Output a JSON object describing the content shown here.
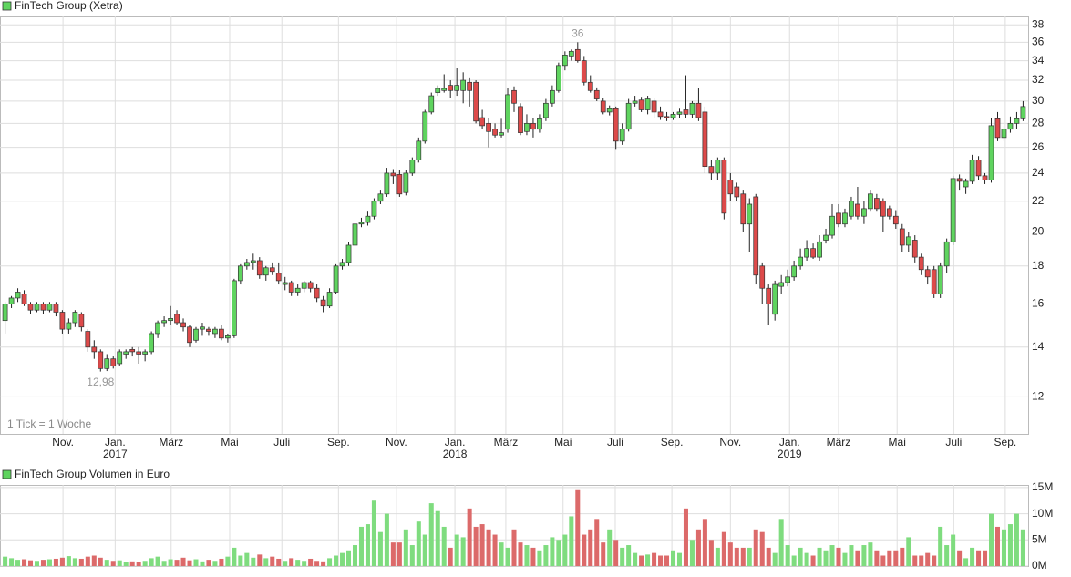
{
  "chart_data": {
    "type": "candlestick",
    "title": "FinTech Group (Xetra)",
    "note": "1 Tick = 1 Woche",
    "volume_title": "FinTech Group Volumen in Euro",
    "log_scale": true,
    "grid": true,
    "up_color": "#5fd45f",
    "down_color": "#dd4a4a",
    "volume_up_color": "#7fdc7f",
    "volume_down_color": "#dc6a6a",
    "ylim": [
      10.7,
      39
    ],
    "yticks": [
      12,
      14,
      16,
      18,
      20,
      22,
      24,
      26,
      28,
      30,
      32,
      34,
      36,
      38
    ],
    "xlim": [
      -0.8,
      160.8
    ],
    "xticks": [
      {
        "value": 9.1,
        "label": "Nov."
      },
      {
        "value": 17.3,
        "label": "Jan."
      },
      {
        "value": 26.1,
        "label": "März"
      },
      {
        "value": 35.3,
        "label": "Mai"
      },
      {
        "value": 43.5,
        "label": "Juli"
      },
      {
        "value": 52.4,
        "label": "Sep."
      },
      {
        "value": 61.5,
        "label": "Nov."
      },
      {
        "value": 70.7,
        "label": "Jan."
      },
      {
        "value": 78.7,
        "label": "März"
      },
      {
        "value": 87.7,
        "label": "Mai"
      },
      {
        "value": 95.9,
        "label": "Juli"
      },
      {
        "value": 104.8,
        "label": "Sep."
      },
      {
        "value": 114.0,
        "label": "Nov."
      },
      {
        "value": 123.3,
        "label": "Jan."
      },
      {
        "value": 131.0,
        "label": "März"
      },
      {
        "value": 140.2,
        "label": "Mai"
      },
      {
        "value": 149.1,
        "label": "Juli"
      },
      {
        "value": 157.2,
        "label": "Sep."
      }
    ],
    "year_labels": [
      {
        "value": 17.3,
        "label": "2017"
      },
      {
        "value": 70.7,
        "label": "2018"
      },
      {
        "value": 123.3,
        "label": "2019"
      }
    ],
    "annotations": [
      {
        "value": 36,
        "label": "36"
      },
      {
        "value": 12.98,
        "label": "12,98"
      }
    ],
    "candles": [
      [
        15.2,
        16.1,
        14.6,
        16.0
      ],
      [
        16.0,
        16.4,
        15.8,
        16.3
      ],
      [
        16.3,
        16.8,
        16.1,
        16.6
      ],
      [
        16.5,
        16.7,
        15.9,
        16.0
      ],
      [
        16.0,
        16.1,
        15.5,
        15.7
      ],
      [
        15.7,
        16.1,
        15.6,
        16.0
      ],
      [
        16.0,
        16.1,
        15.5,
        15.7
      ],
      [
        15.7,
        16.1,
        15.6,
        16.0
      ],
      [
        16.0,
        16.1,
        15.4,
        15.6
      ],
      [
        15.6,
        15.7,
        14.6,
        14.8
      ],
      [
        14.8,
        15.3,
        14.6,
        15.1
      ],
      [
        15.1,
        15.7,
        14.9,
        15.6
      ],
      [
        15.5,
        15.6,
        14.7,
        14.9
      ],
      [
        14.7,
        14.8,
        13.8,
        14.0
      ],
      [
        14.0,
        14.3,
        13.5,
        13.8
      ],
      [
        13.8,
        13.9,
        12.98,
        13.1
      ],
      [
        13.1,
        13.7,
        13.0,
        13.5
      ],
      [
        13.5,
        13.6,
        13.1,
        13.2
      ],
      [
        13.3,
        13.9,
        13.2,
        13.8
      ],
      [
        13.7,
        13.9,
        13.5,
        13.8
      ],
      [
        13.9,
        14.0,
        13.6,
        13.8
      ],
      [
        13.8,
        14.0,
        13.3,
        13.7
      ],
      [
        13.7,
        13.9,
        13.4,
        13.8
      ],
      [
        13.8,
        14.7,
        13.7,
        14.6
      ],
      [
        14.6,
        15.2,
        14.4,
        15.1
      ],
      [
        15.1,
        15.4,
        14.9,
        15.2
      ],
      [
        15.2,
        15.9,
        15.0,
        15.3
      ],
      [
        15.5,
        15.7,
        15.0,
        15.1
      ],
      [
        15.1,
        15.3,
        14.7,
        14.9
      ],
      [
        14.9,
        15.0,
        14.0,
        14.2
      ],
      [
        14.3,
        14.9,
        14.2,
        14.8
      ],
      [
        14.8,
        15.1,
        14.5,
        14.9
      ],
      [
        14.8,
        14.9,
        14.5,
        14.7
      ],
      [
        14.6,
        14.9,
        14.4,
        14.8
      ],
      [
        14.8,
        15.0,
        14.3,
        14.4
      ],
      [
        14.4,
        14.6,
        14.2,
        14.5
      ],
      [
        14.5,
        17.3,
        14.4,
        17.2
      ],
      [
        17.2,
        18.1,
        17.0,
        18.0
      ],
      [
        18.0,
        18.4,
        17.8,
        18.2
      ],
      [
        18.2,
        18.7,
        17.8,
        18.3
      ],
      [
        18.3,
        18.5,
        17.3,
        17.5
      ],
      [
        17.5,
        18.0,
        17.2,
        17.9
      ],
      [
        17.9,
        18.2,
        17.5,
        17.7
      ],
      [
        17.6,
        18.2,
        17.0,
        17.2
      ],
      [
        17.0,
        17.4,
        16.7,
        17.1
      ],
      [
        17.1,
        17.2,
        16.4,
        16.6
      ],
      [
        16.6,
        17.0,
        16.4,
        16.8
      ],
      [
        16.8,
        17.2,
        16.6,
        17.1
      ],
      [
        17.1,
        17.2,
        16.6,
        16.8
      ],
      [
        16.8,
        17.0,
        16.1,
        16.3
      ],
      [
        16.2,
        16.4,
        15.6,
        15.9
      ],
      [
        15.9,
        16.8,
        15.8,
        16.6
      ],
      [
        16.6,
        18.1,
        16.5,
        18.0
      ],
      [
        18.0,
        18.4,
        17.8,
        18.2
      ],
      [
        18.2,
        19.4,
        18.0,
        19.2
      ],
      [
        19.2,
        20.6,
        19.0,
        20.5
      ],
      [
        20.5,
        20.9,
        20.3,
        20.6
      ],
      [
        20.6,
        21.3,
        20.4,
        21.0
      ],
      [
        21.0,
        22.2,
        20.8,
        22.0
      ],
      [
        22.0,
        22.8,
        21.8,
        22.5
      ],
      [
        22.5,
        24.4,
        22.3,
        24.0
      ],
      [
        24.0,
        24.3,
        23.2,
        23.8
      ],
      [
        23.9,
        24.2,
        22.3,
        22.5
      ],
      [
        22.6,
        24.2,
        22.4,
        24.0
      ],
      [
        24.0,
        25.2,
        23.8,
        25.0
      ],
      [
        25.0,
        26.8,
        24.8,
        26.5
      ],
      [
        26.5,
        29.2,
        26.3,
        29.0
      ],
      [
        29.0,
        30.8,
        28.8,
        30.5
      ],
      [
        30.8,
        31.5,
        30.5,
        31.2
      ],
      [
        31.0,
        32.6,
        30.8,
        31.2
      ],
      [
        31.5,
        32.0,
        30.3,
        31.0
      ],
      [
        31.0,
        33.2,
        30.5,
        31.5
      ],
      [
        31.0,
        32.8,
        29.8,
        32.0
      ],
      [
        31.8,
        32.2,
        29.5,
        31.0
      ],
      [
        31.8,
        32.0,
        28.0,
        28.2
      ],
      [
        28.5,
        29.2,
        27.5,
        27.8
      ],
      [
        28.0,
        28.5,
        26.0,
        27.3
      ],
      [
        27.5,
        28.0,
        26.8,
        27.0
      ],
      [
        27.0,
        28.4,
        26.8,
        27.2
      ],
      [
        27.5,
        31.2,
        27.2,
        30.6
      ],
      [
        31.0,
        31.4,
        29.0,
        29.8
      ],
      [
        29.5,
        29.8,
        27.0,
        27.2
      ],
      [
        27.3,
        28.8,
        27.0,
        28.0
      ],
      [
        28.0,
        28.5,
        26.8,
        27.5
      ],
      [
        27.5,
        28.8,
        27.2,
        28.4
      ],
      [
        28.5,
        30.2,
        28.2,
        29.8
      ],
      [
        29.8,
        31.5,
        29.5,
        31.0
      ],
      [
        31.0,
        33.8,
        30.8,
        33.5
      ],
      [
        33.5,
        35.0,
        33.0,
        34.6
      ],
      [
        34.5,
        35.2,
        34.0,
        35.0
      ],
      [
        35.2,
        36.0,
        33.8,
        34.0
      ],
      [
        34.0,
        34.5,
        31.5,
        31.8
      ],
      [
        31.8,
        32.5,
        30.8,
        31.0
      ],
      [
        31.0,
        31.3,
        30.0,
        30.2
      ],
      [
        30.0,
        30.3,
        28.8,
        29.0
      ],
      [
        29.0,
        29.6,
        28.7,
        29.3
      ],
      [
        29.3,
        29.5,
        25.8,
        26.5
      ],
      [
        26.5,
        28.0,
        26.2,
        27.5
      ],
      [
        27.5,
        30.2,
        27.3,
        29.8
      ],
      [
        29.8,
        30.5,
        29.5,
        30.0
      ],
      [
        30.1,
        30.4,
        29.0,
        29.2
      ],
      [
        29.2,
        30.5,
        28.8,
        30.2
      ],
      [
        30.0,
        30.3,
        28.5,
        29.0
      ],
      [
        29.0,
        29.5,
        28.3,
        28.6
      ],
      [
        28.6,
        29.0,
        28.2,
        28.5
      ],
      [
        28.5,
        29.0,
        28.3,
        28.8
      ],
      [
        28.8,
        29.3,
        28.5,
        29.0
      ],
      [
        29.2,
        32.5,
        28.5,
        28.8
      ],
      [
        28.8,
        30.0,
        28.5,
        29.8
      ],
      [
        29.8,
        31.2,
        28.2,
        28.5
      ],
      [
        29.0,
        29.5,
        24.0,
        24.5
      ],
      [
        24.5,
        25.0,
        23.5,
        24.0
      ],
      [
        24.0,
        25.2,
        23.5,
        25.0
      ],
      [
        25.0,
        25.2,
        20.8,
        21.2
      ],
      [
        23.5,
        24.0,
        22.0,
        22.5
      ],
      [
        23.0,
        23.3,
        22.0,
        22.3
      ],
      [
        22.5,
        22.8,
        20.0,
        20.5
      ],
      [
        20.5,
        22.2,
        18.8,
        21.8
      ],
      [
        22.3,
        22.5,
        17.0,
        17.5
      ],
      [
        18.0,
        18.2,
        16.0,
        16.8
      ],
      [
        16.8,
        17.0,
        15.0,
        16.0
      ],
      [
        15.5,
        17.2,
        15.2,
        17.0
      ],
      [
        16.9,
        17.5,
        16.5,
        17.1
      ],
      [
        17.1,
        17.8,
        16.9,
        17.4
      ],
      [
        17.4,
        18.3,
        17.2,
        18.0
      ],
      [
        18.0,
        19.0,
        17.8,
        18.5
      ],
      [
        18.5,
        19.5,
        18.3,
        19.0
      ],
      [
        19.0,
        19.3,
        18.4,
        18.5
      ],
      [
        18.5,
        19.8,
        18.3,
        19.4
      ],
      [
        19.5,
        20.2,
        19.3,
        19.8
      ],
      [
        19.8,
        21.8,
        19.6,
        21.0
      ],
      [
        21.2,
        21.8,
        20.3,
        20.5
      ],
      [
        20.5,
        21.5,
        20.3,
        21.2
      ],
      [
        21.0,
        22.3,
        20.8,
        22.0
      ],
      [
        21.8,
        23.0,
        20.8,
        21.0
      ],
      [
        21.0,
        22.0,
        20.5,
        21.5
      ],
      [
        21.5,
        22.8,
        21.3,
        22.5
      ],
      [
        22.2,
        22.5,
        21.3,
        21.5
      ],
      [
        22.0,
        22.2,
        20.0,
        21.0
      ],
      [
        21.5,
        21.7,
        20.8,
        21.0
      ],
      [
        21.0,
        21.4,
        20.2,
        20.5
      ],
      [
        20.2,
        20.5,
        18.8,
        19.2
      ],
      [
        19.2,
        20.0,
        18.8,
        19.7
      ],
      [
        19.5,
        19.8,
        18.2,
        18.5
      ],
      [
        18.5,
        18.7,
        17.5,
        17.8
      ],
      [
        17.8,
        18.0,
        17.0,
        17.4
      ],
      [
        17.8,
        18.0,
        16.3,
        16.5
      ],
      [
        16.5,
        18.2,
        16.3,
        18.0
      ],
      [
        18.0,
        19.6,
        17.6,
        19.4
      ],
      [
        19.4,
        23.8,
        19.2,
        23.6
      ],
      [
        23.6,
        23.9,
        22.8,
        23.4
      ],
      [
        23.0,
        23.6,
        22.5,
        23.4
      ],
      [
        23.4,
        25.4,
        23.2,
        25.0
      ],
      [
        25.0,
        25.3,
        23.5,
        23.8
      ],
      [
        23.8,
        24.0,
        23.2,
        23.5
      ],
      [
        23.5,
        28.5,
        23.3,
        27.8
      ],
      [
        28.4,
        29.0,
        26.5,
        26.8
      ],
      [
        26.8,
        27.8,
        26.5,
        27.5
      ],
      [
        27.5,
        28.6,
        27.2,
        28.0
      ],
      [
        28.0,
        29.0,
        27.5,
        28.4
      ],
      [
        28.4,
        30.0,
        28.2,
        29.5
      ]
    ],
    "volume": [
      1.8,
      1.5,
      1.2,
      1.3,
      1.1,
      1.0,
      1.2,
      1.3,
      1.4,
      1.6,
      1.9,
      1.5,
      1.4,
      1.8,
      2.0,
      1.6,
      1.2,
      1.0,
      1.1,
      0.8,
      0.9,
      0.8,
      1.0,
      1.5,
      1.8,
      1.0,
      1.3,
      1.2,
      1.6,
      1.1,
      1.3,
      0.9,
      1.2,
      1.0,
      1.4,
      1.8,
      3.5,
      2.0,
      2.5,
      1.6,
      2.2,
      1.5,
      1.8,
      1.4,
      1.0,
      1.5,
      1.2,
      1.0,
      1.4,
      1.0,
      0.9,
      1.5,
      2.0,
      2.5,
      3.0,
      4.0,
      7.5,
      8.0,
      12.5,
      6.5,
      10.0,
      4.5,
      4.5,
      7.0,
      4.0,
      8.5,
      6.0,
      12.0,
      10.5,
      7.5,
      3.5,
      6.0,
      5.5,
      11.0,
      7.5,
      8.0,
      7.0,
      6.0,
      4.5,
      3.5,
      7.0,
      4.5,
      4.0,
      3.5,
      3.0,
      4.0,
      5.5,
      5.0,
      6.0,
      9.5,
      14.5,
      6.0,
      7.0,
      9.0,
      4.5,
      7.0,
      5.0,
      3.5,
      4.0,
      2.5,
      2.0,
      2.2,
      2.5,
      2.0,
      2.0,
      3.0,
      2.5,
      11.0,
      5.0,
      7.0,
      9.0,
      5.0,
      3.5,
      6.5,
      4.5,
      3.5,
      3.5,
      3.5,
      7.0,
      6.5,
      3.5,
      2.5,
      9.0,
      4.0,
      2.0,
      3.5,
      2.5,
      2.0,
      3.5,
      3.0,
      4.0,
      3.5,
      2.5,
      4.0,
      3.0,
      4.0,
      4.5,
      3.0,
      2.0,
      3.0,
      3.0,
      3.5,
      5.5,
      2.0,
      2.0,
      2.5,
      2.0,
      7.5,
      4.0,
      6.0,
      3.0,
      1.5,
      3.5,
      3.0,
      3.0,
      10.0,
      7.5,
      7.0,
      8.0,
      10.0,
      7.0
    ],
    "volume_ylim": [
      0,
      15.5
    ],
    "volume_ticks": [
      {
        "value": 0,
        "label": "0M"
      },
      {
        "value": 5,
        "label": "5M"
      },
      {
        "value": 10,
        "label": "10M"
      },
      {
        "value": 15,
        "label": "15M"
      }
    ]
  }
}
